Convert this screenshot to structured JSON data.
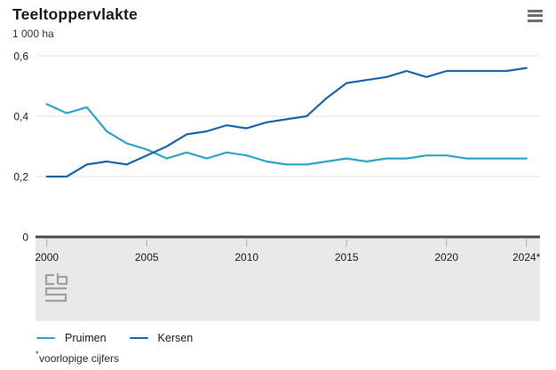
{
  "header": {
    "title": "Teeltoppervlakte",
    "unit_label": "1 000 ha"
  },
  "menu": {
    "icon": "hamburger-icon"
  },
  "logo": {
    "icon": "cbs-logo"
  },
  "chart_data": {
    "type": "line",
    "title": "Teeltoppervlakte",
    "ylabel": "1 000 ha",
    "xlabel": "",
    "grid": "horizontal",
    "legend_position": "bottom",
    "ylim": [
      0,
      0.64
    ],
    "x": [
      2000,
      2001,
      2002,
      2003,
      2004,
      2005,
      2006,
      2007,
      2008,
      2009,
      2010,
      2011,
      2012,
      2013,
      2014,
      2015,
      2016,
      2017,
      2018,
      2019,
      2020,
      2021,
      2022,
      2023,
      2024
    ],
    "series": [
      {
        "name": "Pruimen",
        "color": "#2ea6ca",
        "values": [
          0.44,
          0.41,
          0.43,
          0.35,
          0.31,
          0.29,
          0.26,
          0.28,
          0.26,
          0.28,
          0.27,
          0.25,
          0.24,
          0.24,
          0.25,
          0.26,
          0.25,
          0.26,
          0.26,
          0.27,
          0.27,
          0.26,
          0.26,
          0.26,
          0.26
        ]
      },
      {
        "name": "Kersen",
        "color": "#1c64ab",
        "values": [
          0.2,
          0.2,
          0.24,
          0.25,
          0.24,
          0.27,
          0.3,
          0.34,
          0.35,
          0.37,
          0.36,
          0.38,
          0.39,
          0.4,
          0.46,
          0.51,
          0.52,
          0.53,
          0.55,
          0.53,
          0.55,
          0.55,
          0.55,
          0.55,
          0.56
        ]
      }
    ],
    "x_ticks": [
      {
        "value": 2000,
        "label": "2000"
      },
      {
        "value": 2005,
        "label": "2005"
      },
      {
        "value": 2010,
        "label": "2010"
      },
      {
        "value": 2015,
        "label": "2015"
      },
      {
        "value": 2020,
        "label": "2020"
      },
      {
        "value": 2024,
        "label": "2024*"
      }
    ],
    "y_ticks": [
      {
        "value": 0.6,
        "label": "0,6"
      },
      {
        "value": 0.4,
        "label": "0,4"
      },
      {
        "value": 0.2,
        "label": "0,2"
      },
      {
        "value": 0,
        "label": "0"
      }
    ]
  },
  "footnote": {
    "marker": "*",
    "text": "voorlopige cijfers"
  },
  "colors": {
    "axis": "#4d4d4d",
    "gridline": "#e3e3e3",
    "band": "#e9e9e9",
    "tick": "#ababab",
    "text": "#1a1a1a",
    "logo": "#a0a0a0",
    "menu_icon": "#6f6f6f"
  }
}
